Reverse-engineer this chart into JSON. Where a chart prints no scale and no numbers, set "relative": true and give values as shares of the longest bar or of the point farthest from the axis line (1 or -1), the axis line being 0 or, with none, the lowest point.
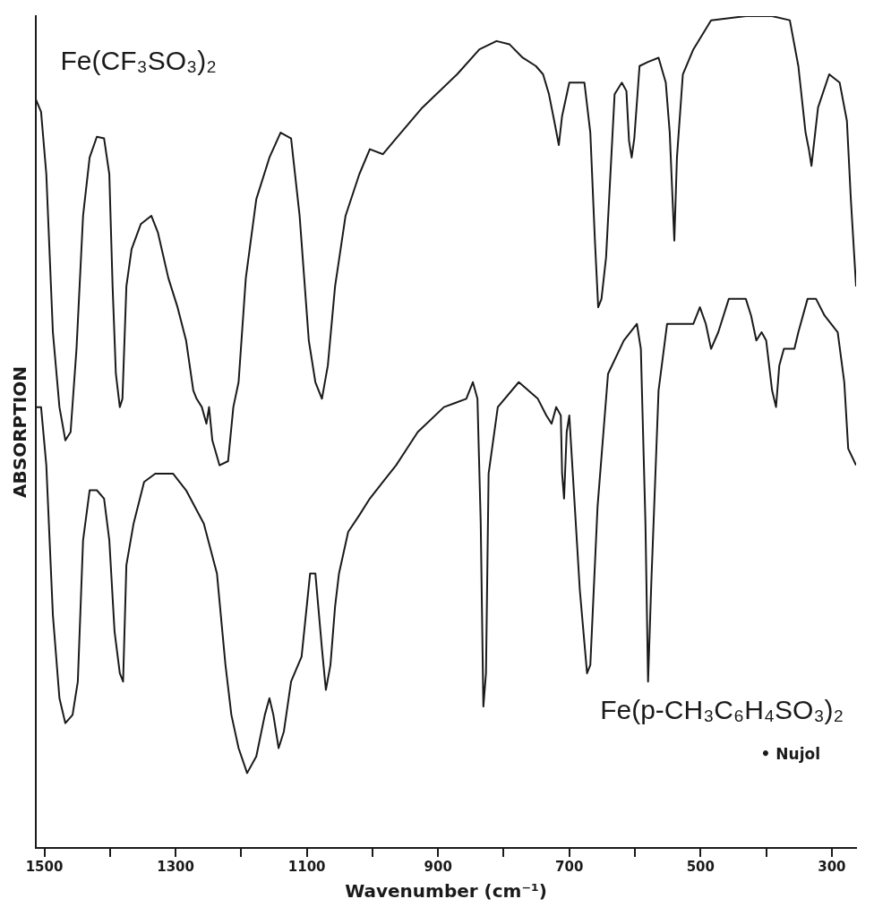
{
  "chart_data": {
    "type": "line",
    "relative": true,
    "xlabel": "Wavenumber (cm⁻¹)",
    "ylabel": "ABSORPTION",
    "xlim": [
      1513,
      263
    ],
    "xticks": [
      1500,
      {
        "value": 1400,
        "label": null
      },
      1300,
      {
        "value": 1200,
        "label": null
      },
      1100,
      {
        "value": 1000,
        "label": null
      },
      900,
      {
        "value": 800,
        "label": null
      },
      700,
      {
        "value": 600,
        "label": null
      },
      500,
      {
        "value": 400,
        "label": null
      },
      300
    ],
    "grid": false,
    "legend": false,
    "marker": "none",
    "line_style": "solid",
    "annotations": [
      "• Nujol"
    ],
    "series": [
      {
        "name": "Fe(CF₃SO₃)₂",
        "color": "#1a1a1a",
        "x": [
          1513,
          1505,
          1497,
          1487,
          1477,
          1468,
          1460,
          1451,
          1441,
          1431,
          1420,
          1409,
          1401,
          1396,
          1391,
          1385,
          1381,
          1375,
          1367,
          1353,
          1337,
          1327,
          1311,
          1297,
          1284,
          1273,
          1268,
          1260,
          1253,
          1249,
          1244,
          1233,
          1220,
          1212,
          1204,
          1193,
          1177,
          1157,
          1140,
          1124,
          1111,
          1097,
          1087,
          1077,
          1068,
          1057,
          1041,
          1020,
          1004,
          984,
          964,
          924,
          871,
          837,
          811,
          791,
          771,
          751,
          740,
          731,
          723,
          716,
          711,
          700,
          691,
          677,
          668,
          661,
          656,
          651,
          644,
          631,
          620,
          613,
          609,
          605,
          601,
          593,
          580,
          564,
          553,
          547,
          540,
          536,
          527,
          511,
          484,
          431,
          391,
          364,
          351,
          340,
          335,
          331,
          321,
          304,
          288,
          277,
          271,
          263
        ],
        "values": [
          0.9,
          0.885,
          0.81,
          0.62,
          0.53,
          0.49,
          0.5,
          0.6,
          0.76,
          0.83,
          0.855,
          0.853,
          0.81,
          0.675,
          0.57,
          0.53,
          0.54,
          0.675,
          0.72,
          0.75,
          0.76,
          0.74,
          0.685,
          0.65,
          0.61,
          0.55,
          0.54,
          0.53,
          0.51,
          0.53,
          0.49,
          0.46,
          0.465,
          0.53,
          0.56,
          0.685,
          0.78,
          0.83,
          0.86,
          0.853,
          0.76,
          0.61,
          0.56,
          0.54,
          0.58,
          0.675,
          0.76,
          0.81,
          0.84,
          0.834,
          0.853,
          0.89,
          0.93,
          0.96,
          0.97,
          0.966,
          0.95,
          0.94,
          0.93,
          0.906,
          0.874,
          0.845,
          0.88,
          0.92,
          0.92,
          0.92,
          0.86,
          0.73,
          0.65,
          0.66,
          0.71,
          0.906,
          0.92,
          0.91,
          0.85,
          0.83,
          0.853,
          0.94,
          0.945,
          0.95,
          0.92,
          0.86,
          0.73,
          0.83,
          0.93,
          0.96,
          0.995,
          1,
          1,
          0.995,
          0.94,
          0.86,
          0.84,
          0.82,
          0.89,
          0.93,
          0.92,
          0.874,
          0.78,
          0.675
        ]
      },
      {
        "name": "Fe(p-CH₃C₆H₄SO₃)₂",
        "color": "#1a1a1a",
        "x": [
          1513,
          1505,
          1497,
          1487,
          1477,
          1468,
          1457,
          1449,
          1441,
          1431,
          1420,
          1409,
          1401,
          1393,
          1385,
          1380,
          1375,
          1364,
          1348,
          1331,
          1304,
          1284,
          1257,
          1237,
          1224,
          1215,
          1204,
          1191,
          1177,
          1164,
          1157,
          1151,
          1143,
          1135,
          1124,
          1108,
          1095,
          1087,
          1077,
          1071,
          1064,
          1057,
          1051,
          1037,
          1020,
          1004,
          984,
          964,
          931,
          891,
          857,
          847,
          840,
          835,
          831,
          827,
          823,
          809,
          777,
          748,
          735,
          727,
          720,
          713,
          711,
          708,
          704,
          700,
          697,
          684,
          673,
          668,
          657,
          641,
          617,
          597,
          591,
          584,
          580,
          575,
          564,
          551,
          524,
          511,
          501,
          492,
          484,
          473,
          457,
          444,
          431,
          423,
          415,
          407,
          400,
          391,
          385,
          380,
          373,
          364,
          357,
          351,
          337,
          324,
          311,
          291,
          281,
          275,
          263
        ],
        "values": [
          0.53,
          0.53,
          0.46,
          0.28,
          0.18,
          0.15,
          0.16,
          0.2,
          0.37,
          0.43,
          0.43,
          0.42,
          0.37,
          0.26,
          0.21,
          0.2,
          0.34,
          0.39,
          0.44,
          0.45,
          0.45,
          0.43,
          0.39,
          0.33,
          0.22,
          0.16,
          0.12,
          0.09,
          0.11,
          0.16,
          0.18,
          0.16,
          0.12,
          0.14,
          0.2,
          0.23,
          0.33,
          0.33,
          0.24,
          0.19,
          0.22,
          0.29,
          0.33,
          0.38,
          0.4,
          0.42,
          0.44,
          0.46,
          0.5,
          0.53,
          0.54,
          0.56,
          0.54,
          0.39,
          0.17,
          0.21,
          0.45,
          0.53,
          0.56,
          0.54,
          0.52,
          0.51,
          0.53,
          0.52,
          0.45,
          0.42,
          0.5,
          0.52,
          0.48,
          0.31,
          0.21,
          0.22,
          0.41,
          0.57,
          0.61,
          0.63,
          0.6,
          0.39,
          0.2,
          0.32,
          0.55,
          0.63,
          0.63,
          0.63,
          0.65,
          0.63,
          0.6,
          0.62,
          0.66,
          0.66,
          0.66,
          0.64,
          0.61,
          0.62,
          0.61,
          0.55,
          0.53,
          0.58,
          0.6,
          0.6,
          0.6,
          0.62,
          0.66,
          0.66,
          0.64,
          0.62,
          0.56,
          0.48,
          0.46
        ]
      }
    ]
  }
}
